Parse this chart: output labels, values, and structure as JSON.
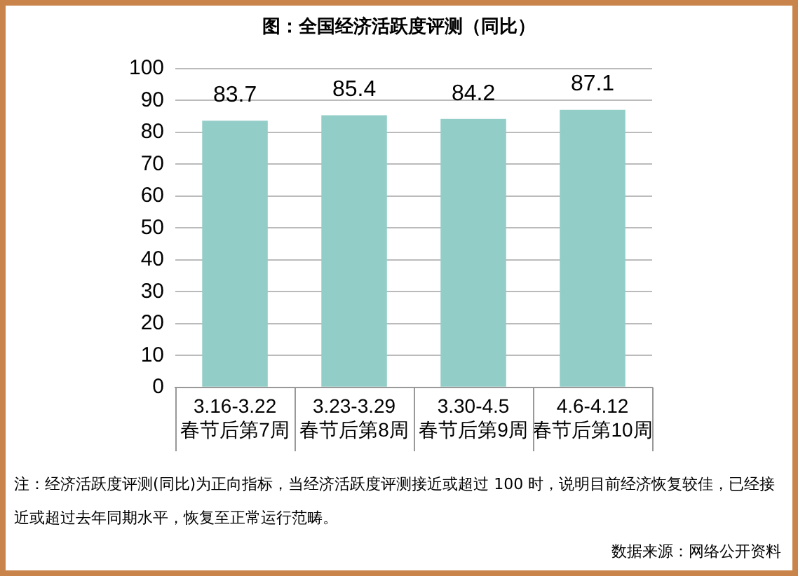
{
  "chart_data": {
    "type": "bar",
    "title": "图：全国经济活跃度评测（同比）",
    "categories": [
      "3.16-3.22\n春节后第7周",
      "3.23-3.29\n春节后第8周",
      "3.30-4.5\n春节后第9周",
      "4.6-4.12\n春节后第10周"
    ],
    "values": [
      83.7,
      85.4,
      84.2,
      87.1
    ],
    "color": "#92cdc8",
    "ylim": [
      0,
      100
    ],
    "yticks": [
      0,
      10,
      20,
      30,
      40,
      50,
      60,
      70,
      80,
      90,
      100
    ],
    "grid": "y",
    "data_labels": true,
    "legend": false,
    "annotations": [
      "注：经济活跃度评测(同比)为正向指标，当经济活跃度评测接近或超过 100 时，说明目前经济恢复较佳，已经接近或超过去年同期水平，恢复至正常运行范畴。",
      "数据来源：网络公开资料"
    ]
  }
}
